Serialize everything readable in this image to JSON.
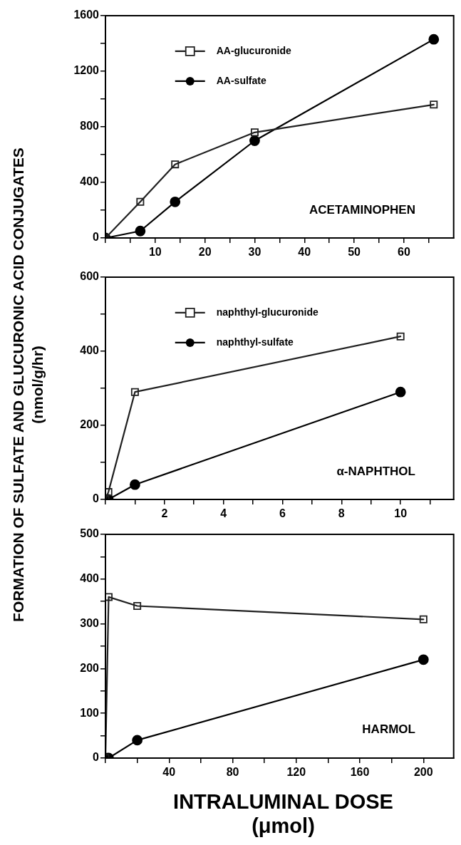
{
  "chart_data": [
    {
      "type": "line",
      "annotations": [
        "ACETAMINOPHEN"
      ],
      "legend": "top left",
      "xlim": [
        0,
        70
      ],
      "ylim": [
        0,
        1600
      ],
      "xticks": [
        {
          "value": 0,
          "label": null
        },
        {
          "value": 5,
          "label": null
        },
        10,
        {
          "value": 15,
          "label": null
        },
        20,
        {
          "value": 25,
          "label": null
        },
        30,
        {
          "value": 35,
          "label": null
        },
        40,
        {
          "value": 45,
          "label": null
        },
        50,
        {
          "value": 55,
          "label": null
        },
        60,
        {
          "value": 65,
          "label": null
        }
      ],
      "yticks": [
        0,
        {
          "value": 200,
          "label": null
        },
        400,
        {
          "value": 600,
          "label": null
        },
        800,
        {
          "value": 1000,
          "label": null
        },
        1200,
        {
          "value": 1400,
          "label": null
        },
        1600
      ],
      "series": [
        {
          "name": "AA-glucuronide",
          "color": "#202020",
          "marker": "square",
          "x": [
            0,
            7,
            14,
            30,
            66
          ],
          "values": [
            0,
            260,
            530,
            760,
            960
          ]
        },
        {
          "name": "AA-sulfate",
          "color": "#000000",
          "marker": "circle",
          "x": [
            0,
            7,
            14,
            30,
            66
          ],
          "values": [
            0,
            50,
            260,
            700,
            1430
          ]
        }
      ]
    },
    {
      "type": "line",
      "annotations": [
        "α-NAPHTHOL"
      ],
      "ylabel": "FORMATION OF SULFATE AND GLUCURONIC ACID CONJUGATES\n(nmol/g/hr)",
      "legend": "top left",
      "xlim": [
        0,
        11.8
      ],
      "ylim": [
        0,
        600
      ],
      "xticks": [
        {
          "value": 0,
          "label": null
        },
        {
          "value": 1,
          "label": null
        },
        2,
        {
          "value": 3,
          "label": null
        },
        4,
        {
          "value": 5,
          "label": null
        },
        6,
        {
          "value": 7,
          "label": null
        },
        8,
        {
          "value": 9,
          "label": null
        },
        10,
        {
          "value": 11,
          "label": null
        }
      ],
      "yticks": [
        0,
        {
          "value": 100,
          "label": null
        },
        200,
        {
          "value": 300,
          "label": null
        },
        400,
        {
          "value": 500,
          "label": null
        },
        600
      ],
      "series": [
        {
          "name": "naphthyl-glucuronide",
          "color": "#202020",
          "marker": "square",
          "x": [
            0,
            0.1,
            1,
            10
          ],
          "values": [
            0,
            20,
            290,
            440
          ]
        },
        {
          "name": "naphthyl-sulfate",
          "color": "#000000",
          "marker": "circle",
          "x": [
            0,
            0.1,
            1,
            10
          ],
          "values": [
            0,
            0,
            40,
            290
          ]
        }
      ]
    },
    {
      "type": "line",
      "annotations": [
        "HARMOL"
      ],
      "xlabel": "INTRALUMINAL DOSE\n(μmol)",
      "xlim": [
        0,
        219
      ],
      "ylim": [
        0,
        500
      ],
      "xticks": [
        {
          "value": 0,
          "label": null
        },
        {
          "value": 20,
          "label": null
        },
        40,
        {
          "value": 60,
          "label": null
        },
        80,
        {
          "value": 100,
          "label": null
        },
        120,
        {
          "value": 140,
          "label": null
        },
        160,
        {
          "value": 180,
          "label": null
        },
        200
      ],
      "yticks": [
        0,
        {
          "value": 50,
          "label": null
        },
        100,
        {
          "value": 150,
          "label": null
        },
        200,
        {
          "value": 250,
          "label": null
        },
        300,
        {
          "value": 350,
          "label": null
        },
        400,
        {
          "value": 450,
          "label": null
        },
        500
      ],
      "series": [
        {
          "color": "#202020",
          "marker": "square",
          "x": [
            0,
            2,
            20,
            200
          ],
          "values": [
            0,
            360,
            340,
            310
          ]
        },
        {
          "color": "#000000",
          "marker": "circle",
          "x": [
            0,
            2,
            20,
            200
          ],
          "values": [
            0,
            0,
            40,
            220
          ]
        }
      ]
    }
  ]
}
